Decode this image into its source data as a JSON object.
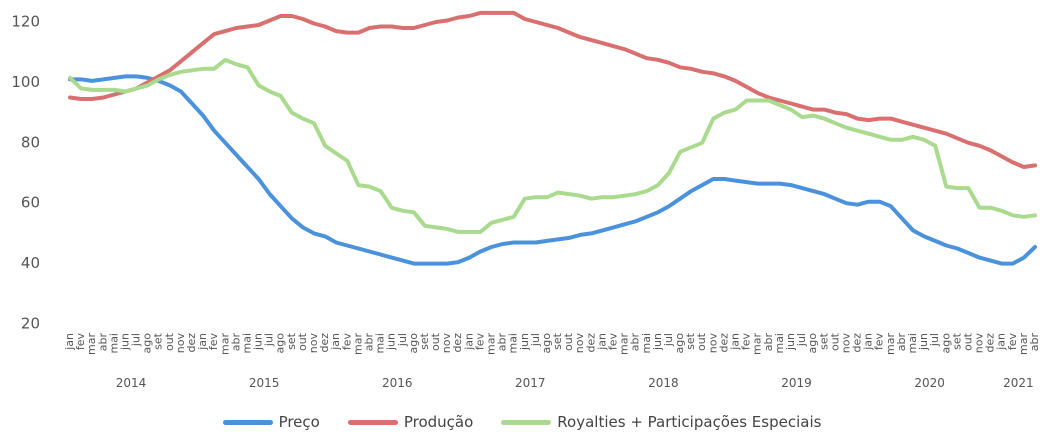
{
  "chart_data": {
    "type": "line",
    "categories": [
      "jan",
      "fev",
      "mar",
      "abr",
      "mai",
      "jun",
      "jul",
      "ago",
      "set",
      "out",
      "nov",
      "dez",
      "jan",
      "fev",
      "mar",
      "abr",
      "mai",
      "jun",
      "jul",
      "ago",
      "set",
      "out",
      "nov",
      "dez",
      "jan",
      "fev",
      "mar",
      "abr",
      "mai",
      "jun",
      "jul",
      "ago",
      "set",
      "out",
      "nov",
      "dez",
      "jan",
      "fev",
      "mar",
      "abr",
      "mai",
      "jun",
      "jul",
      "ago",
      "set",
      "out",
      "nov",
      "dez",
      "jan",
      "fev",
      "mar",
      "abr",
      "mai",
      "jun",
      "jul",
      "ago",
      "set",
      "out",
      "nov",
      "dez",
      "jan",
      "fev",
      "mar",
      "abr",
      "mai",
      "jun",
      "jul",
      "ago",
      "set",
      "out",
      "nov",
      "dez",
      "jan",
      "fev",
      "mar",
      "abr",
      "mai",
      "jun",
      "jul",
      "ago",
      "set",
      "out",
      "nov",
      "dez",
      "jan",
      "fev",
      "mar",
      "abr"
    ],
    "year_groups": [
      "2014",
      "2015",
      "2016",
      "2017",
      "2018",
      "2019",
      "2020",
      "2021"
    ],
    "ylim": [
      20,
      120
    ],
    "yticks": [
      20,
      40,
      60,
      80,
      100,
      120
    ],
    "legend": "bottom",
    "series": [
      {
        "name": "Preço",
        "color": "#4a92dc",
        "values": [
          101,
          101,
          100.5,
          101,
          101.5,
          102,
          102,
          101.5,
          100.5,
          99,
          97,
          93,
          89,
          84,
          80,
          76,
          72,
          68,
          63,
          59,
          55,
          52,
          50,
          49,
          47,
          46,
          45,
          44,
          43,
          42,
          41,
          40,
          40,
          40,
          40,
          40.5,
          42,
          44,
          45.5,
          46.5,
          47,
          47,
          47,
          47.5,
          48,
          48.5,
          49.5,
          50,
          51,
          52,
          53,
          54,
          55.5,
          57,
          59,
          61.5,
          64,
          66,
          68,
          68,
          67.5,
          67,
          66.5,
          66.5,
          66.5,
          66,
          65,
          64,
          63,
          61.5,
          60,
          59.5,
          60.5,
          60.5,
          59,
          55,
          51,
          49,
          47.5,
          46,
          45,
          43.5,
          42,
          41,
          40,
          40,
          42,
          45.5
        ]
      },
      {
        "name": "Produção",
        "color": "#d9706f",
        "values": [
          95,
          94.5,
          94.5,
          95,
          96,
          97,
          98,
          100,
          102,
          104,
          107,
          110,
          113,
          116,
          117,
          118,
          118.5,
          119,
          120.5,
          122,
          122,
          121,
          119.5,
          118.5,
          117,
          116.5,
          116.5,
          118,
          118.5,
          118.5,
          118,
          118,
          119,
          120,
          120.5,
          121.5,
          122,
          123,
          123,
          123,
          123,
          121,
          120,
          119,
          118,
          116.5,
          115,
          114,
          113,
          112,
          111,
          109.5,
          108,
          107.5,
          106.5,
          105,
          104.5,
          103.5,
          103,
          102,
          100.5,
          98.5,
          96.5,
          95,
          94,
          93,
          92,
          91,
          91,
          90,
          89.5,
          88,
          87.5,
          88,
          88,
          87,
          86,
          85,
          84,
          83,
          81.5,
          80,
          79,
          77.5,
          75.5,
          73.5,
          72,
          72.5
        ]
      },
      {
        "name": "Royalties + Participações Especiais",
        "color": "#a9da8e",
        "values": [
          101.5,
          98,
          97.5,
          97.5,
          97.5,
          97,
          98,
          99,
          101,
          102.5,
          103.5,
          104,
          104.5,
          104.5,
          107.5,
          106,
          105,
          99,
          97,
          95.5,
          90,
          88,
          86.5,
          79,
          76.5,
          74,
          66,
          65.5,
          64,
          58.5,
          57.5,
          57,
          52.5,
          52,
          51.5,
          50.5,
          50.5,
          50.5,
          53.5,
          54.5,
          55.5,
          61.5,
          62,
          62,
          63.5,
          63,
          62.5,
          61.5,
          62,
          62,
          62.5,
          63,
          64,
          66,
          70,
          77,
          78.5,
          80,
          88,
          90,
          91,
          94,
          94,
          94,
          92.5,
          91,
          88.5,
          89,
          88,
          86.5,
          85,
          84,
          83,
          82,
          81,
          81,
          82,
          81,
          79,
          65.5,
          65,
          65,
          58.5,
          58.5,
          57.5,
          56,
          55.5,
          56
        ]
      }
    ]
  }
}
